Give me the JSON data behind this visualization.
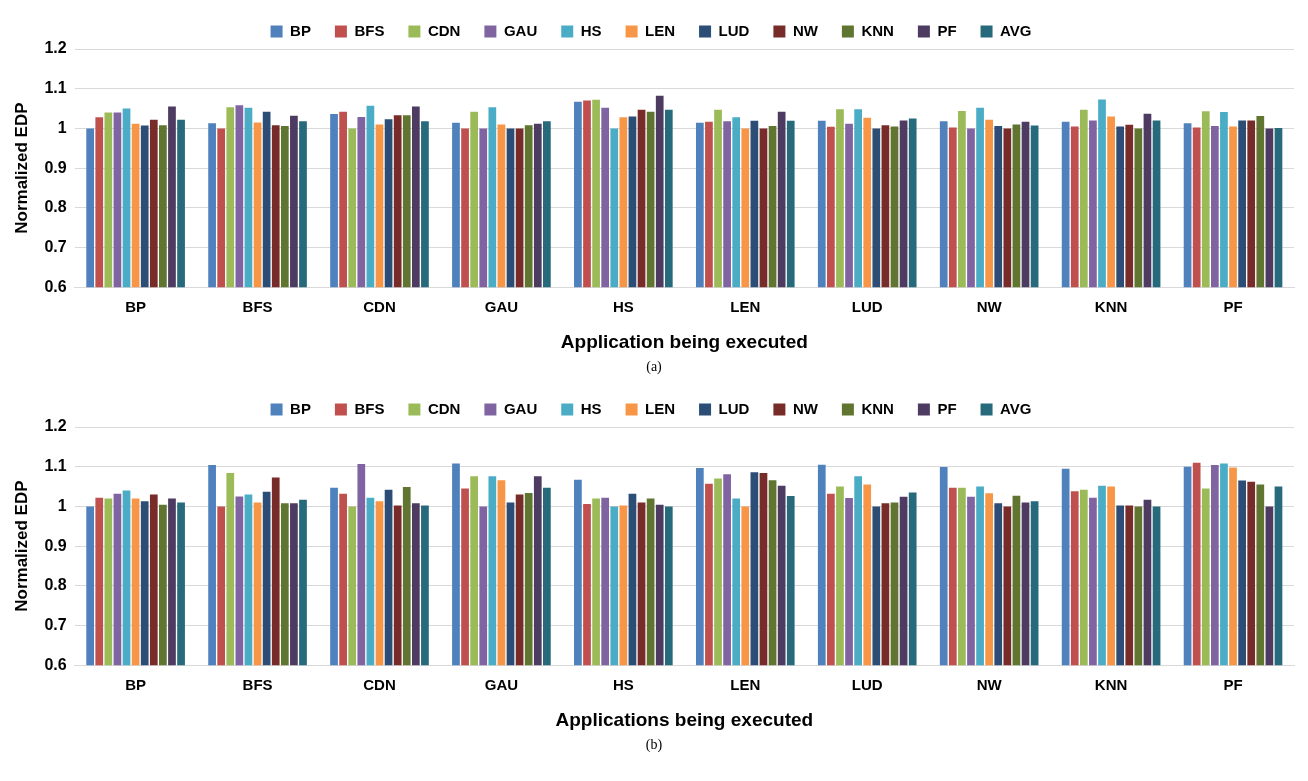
{
  "chart_data": [
    {
      "type": "bar",
      "xlabel": "Application being executed",
      "ylabel": "Normalized EDP",
      "categories": [
        "BP",
        "BFS",
        "CDN",
        "GAU",
        "HS",
        "LEN",
        "LUD",
        "NW",
        "KNN",
        "PF"
      ],
      "ylim": [
        0.6,
        1.2
      ],
      "yticks": [
        0.6,
        0.7,
        0.8,
        0.9,
        1,
        1.1,
        1.2
      ],
      "grid": "y",
      "legend": "top",
      "annotations": [
        "(a)"
      ],
      "series": [
        {
          "name": "BP",
          "color": "#4f81bd",
          "values": [
            1.0,
            1.013,
            1.036,
            1.014,
            1.067,
            1.014,
            1.019,
            1.018,
            1.017,
            1.013
          ]
        },
        {
          "name": "BFS",
          "color": "#c0504d",
          "values": [
            1.028,
            1.0,
            1.042,
            1.0,
            1.07,
            1.017,
            1.004,
            1.002,
            1.005,
            1.002
          ]
        },
        {
          "name": "CDN",
          "color": "#9bbb59",
          "values": [
            1.04,
            1.053,
            1.0,
            1.042,
            1.072,
            1.047,
            1.048,
            1.044,
            1.047,
            1.043
          ]
        },
        {
          "name": "GAU",
          "color": "#8064a2",
          "values": [
            1.04,
            1.058,
            1.029,
            1.0,
            1.052,
            1.018,
            1.012,
            1.0,
            1.02,
            1.006
          ]
        },
        {
          "name": "HS",
          "color": "#4bacc6",
          "values": [
            1.05,
            1.052,
            1.057,
            1.053,
            1.0,
            1.028,
            1.048,
            1.052,
            1.073,
            1.041
          ]
        },
        {
          "name": "LEN",
          "color": "#f79646",
          "values": [
            1.012,
            1.015,
            1.01,
            1.01,
            1.028,
            1.0,
            1.027,
            1.022,
            1.03,
            1.005
          ]
        },
        {
          "name": "LUD",
          "color": "#2c4d75",
          "values": [
            1.007,
            1.042,
            1.023,
            1.0,
            1.03,
            1.019,
            1.0,
            1.006,
            1.005,
            1.02
          ]
        },
        {
          "name": "NW",
          "color": "#772c2a",
          "values": [
            1.022,
            1.008,
            1.033,
            1.0,
            1.047,
            1.0,
            1.008,
            1.0,
            1.009,
            1.02
          ]
        },
        {
          "name": "KNN",
          "color": "#5f7530",
          "values": [
            1.008,
            1.006,
            1.033,
            1.008,
            1.042,
            1.006,
            1.005,
            1.01,
            1.0,
            1.031
          ]
        },
        {
          "name": "PF",
          "color": "#4d3b62",
          "values": [
            1.055,
            1.032,
            1.055,
            1.012,
            1.082,
            1.042,
            1.02,
            1.017,
            1.037,
            1.0
          ]
        },
        {
          "name": "AVG",
          "color": "#276a7c",
          "values": [
            1.022,
            1.018,
            1.018,
            1.018,
            1.047,
            1.019,
            1.025,
            1.007,
            1.02,
            1.001
          ]
        }
      ]
    },
    {
      "type": "bar",
      "xlabel": "Applications being executed",
      "ylabel": "Normalized EDP",
      "categories": [
        "BP",
        "BFS",
        "CDN",
        "GAU",
        "HS",
        "LEN",
        "LUD",
        "NW",
        "KNN",
        "PF"
      ],
      "ylim": [
        0.6,
        1.2
      ],
      "yticks": [
        0.6,
        0.7,
        0.8,
        0.9,
        1,
        1.1,
        1.2
      ],
      "grid": "y",
      "legend": "top",
      "annotations": [
        "(b)"
      ],
      "series": [
        {
          "name": "BP",
          "color": "#4f81bd",
          "values": [
            1.0,
            1.104,
            1.047,
            1.108,
            1.067,
            1.097,
            1.105,
            1.099,
            1.095,
            1.1
          ]
        },
        {
          "name": "BFS",
          "color": "#c0504d",
          "values": [
            1.022,
            1.0,
            1.032,
            1.045,
            1.006,
            1.057,
            1.032,
            1.047,
            1.038,
            1.11
          ]
        },
        {
          "name": "CDN",
          "color": "#9bbb59",
          "values": [
            1.02,
            1.084,
            1.0,
            1.076,
            1.02,
            1.07,
            1.05,
            1.047,
            1.042,
            1.045
          ]
        },
        {
          "name": "GAU",
          "color": "#8064a2",
          "values": [
            1.032,
            1.025,
            1.107,
            1.0,
            1.022,
            1.081,
            1.021,
            1.024,
            1.022,
            1.104
          ]
        },
        {
          "name": "HS",
          "color": "#4bacc6",
          "values": [
            1.04,
            1.03,
            1.022,
            1.076,
            1.0,
            1.02,
            1.076,
            1.05,
            1.052,
            1.108
          ]
        },
        {
          "name": "LEN",
          "color": "#f79646",
          "values": [
            1.02,
            1.01,
            1.013,
            1.066,
            1.002,
            1.0,
            1.055,
            1.033,
            1.05,
            1.098
          ]
        },
        {
          "name": "LUD",
          "color": "#2c4d75",
          "values": [
            1.013,
            1.037,
            1.042,
            1.01,
            1.032,
            1.086,
            1.0,
            1.008,
            1.002,
            1.065
          ]
        },
        {
          "name": "NW",
          "color": "#772c2a",
          "values": [
            1.03,
            1.073,
            1.002,
            1.03,
            1.01,
            1.084,
            1.008,
            1.0,
            1.002,
            1.062
          ]
        },
        {
          "name": "KNN",
          "color": "#5f7530",
          "values": [
            1.004,
            1.008,
            1.049,
            1.034,
            1.02,
            1.066,
            1.01,
            1.027,
            1.0,
            1.055
          ]
        },
        {
          "name": "PF",
          "color": "#4d3b62",
          "values": [
            1.02,
            1.008,
            1.008,
            1.076,
            1.004,
            1.052,
            1.024,
            1.01,
            1.017,
            1.0
          ]
        },
        {
          "name": "AVG",
          "color": "#276a7c",
          "values": [
            1.01,
            1.017,
            1.002,
            1.047,
            1.0,
            1.026,
            1.035,
            1.013,
            1.0,
            1.05
          ]
        }
      ]
    }
  ]
}
